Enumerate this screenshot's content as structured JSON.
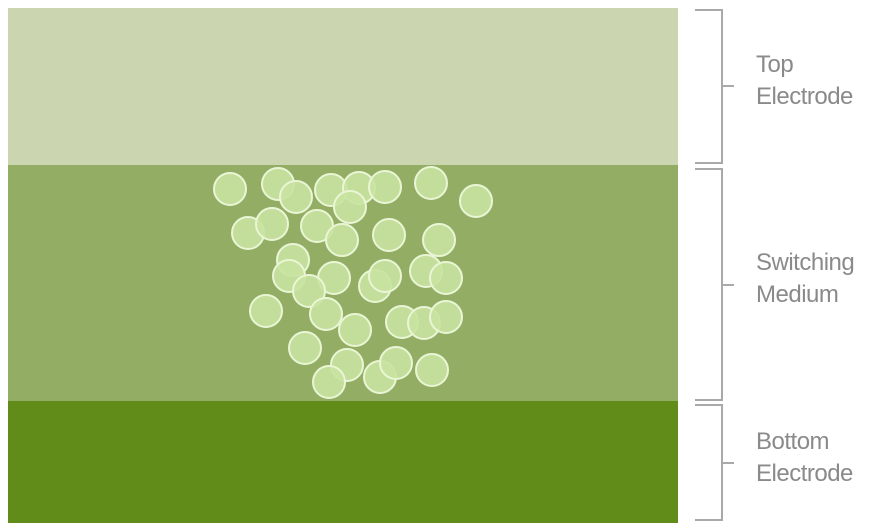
{
  "colors": {
    "top_electrode": "#cbd6b1",
    "switching_medium": "#93ae64",
    "bottom_electrode": "#628c1a",
    "particle_fill": "#c8e3a0",
    "particle_stroke": "#eaf5d6",
    "bracket": "#a9a9a9",
    "label_text": "#8a8a8a"
  },
  "labels": {
    "top": {
      "line1": "Top",
      "line2": "Electrode"
    },
    "switching": {
      "line1": "Switching",
      "line2": "Medium"
    },
    "bottom": {
      "line1": "Bottom",
      "line2": "Electrode"
    }
  }
}
